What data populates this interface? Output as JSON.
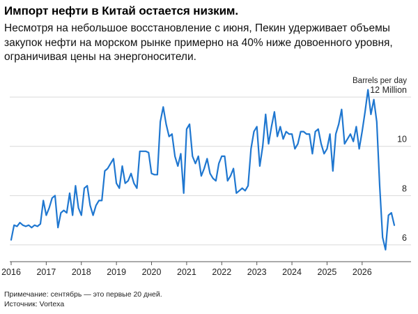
{
  "header": {
    "title": "Импорт нефти в Китай остается низким.",
    "subtitle": "Несмотря на небольшое восстановление с июня, Пекин удерживает объемы закупок нефти на морском рынке примерно на 40% ниже довоенного уровня, ограничивая цены на энергоносители."
  },
  "footer": {
    "note": "Примечание: сентябрь — это первые 20 дней.",
    "source": "Источник: Vortexa"
  },
  "chart_data": {
    "type": "line",
    "title": "Импорт нефти в Китай остается низким.",
    "unit_label": "Barrels per day",
    "ylim": [
      5.6,
      12.6
    ],
    "y_ticks": [
      {
        "value": 12,
        "label": "12 Million"
      },
      {
        "value": 10,
        "label": "10"
      },
      {
        "value": 8,
        "label": "8"
      },
      {
        "value": 6,
        "label": "6"
      }
    ],
    "x_ticks": [
      "2016",
      "2017",
      "2018",
      "2019",
      "2020",
      "2021",
      "2022",
      "2023",
      "2024",
      "2025",
      "2026"
    ],
    "grid": "horizontal",
    "line_color": "#1f77d0",
    "series": [
      {
        "start": "2016-01",
        "frequency": "monthly",
        "values": [
          6.2,
          6.8,
          6.75,
          6.9,
          6.8,
          6.75,
          6.8,
          6.7,
          6.8,
          6.75,
          6.85,
          7.8,
          7.2,
          7.5,
          7.9,
          8.0,
          6.7,
          7.3,
          7.4,
          7.3,
          8.1,
          7.2,
          8.4,
          7.5,
          7.2,
          8.3,
          8.4,
          7.6,
          7.2,
          7.6,
          7.8,
          7.8,
          9.0,
          9.1,
          9.3,
          9.5,
          8.5,
          8.3,
          9.2,
          8.5,
          8.6,
          8.9,
          8.5,
          8.3,
          9.8,
          9.8,
          9.8,
          9.75,
          8.9,
          8.85,
          8.85,
          11.0,
          11.6,
          10.9,
          10.4,
          10.5,
          9.6,
          9.2,
          9.7,
          8.1,
          10.7,
          10.9,
          9.6,
          9.3,
          9.6,
          8.8,
          9.1,
          9.5,
          8.9,
          8.7,
          8.6,
          9.3,
          9.6,
          9.6,
          8.6,
          8.8,
          9.1,
          8.1,
          8.2,
          8.3,
          8.2,
          8.4,
          9.9,
          10.6,
          10.8,
          9.2,
          10.0,
          11.3,
          10.1,
          10.8,
          11.4,
          10.4,
          10.8,
          10.3,
          10.6,
          10.5,
          10.5,
          9.9,
          10.1,
          10.6,
          10.6,
          10.5,
          10.5,
          9.7,
          10.6,
          10.7,
          10.1,
          9.7,
          9.9,
          10.5,
          9.0,
          10.5,
          10.9,
          11.5,
          10.1,
          10.3,
          10.5,
          10.2,
          10.8,
          9.9,
          10.6,
          11.4,
          12.3,
          11.3,
          11.9,
          11.0,
          8.4,
          6.3,
          5.8,
          7.2,
          7.3,
          6.8
        ]
      }
    ]
  }
}
